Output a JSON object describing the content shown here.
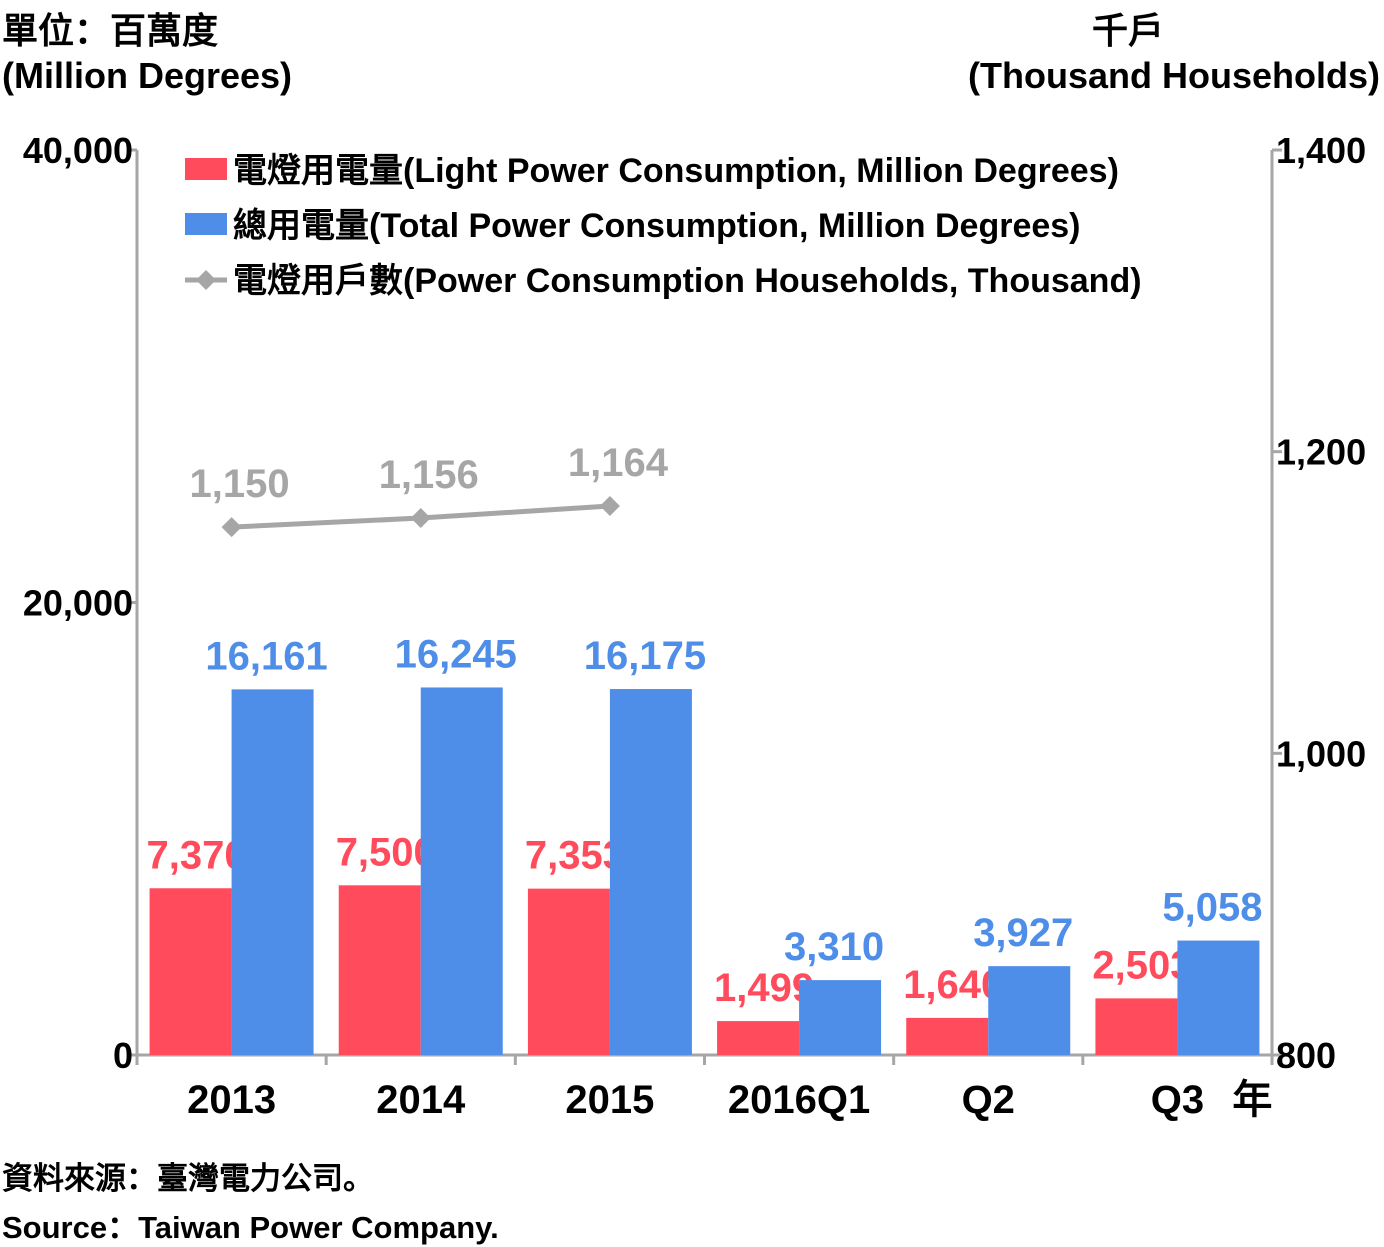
{
  "left_unit": {
    "line1": "單位：百萬度",
    "line2": "(Million Degrees)"
  },
  "right_unit": {
    "line1": "千戶",
    "line2": "(Thousand Households)"
  },
  "source": {
    "zh": "資料來源：臺灣電力公司。",
    "en": "Source：Taiwan Power Company."
  },
  "year_suffix": "年",
  "colors": {
    "light": "#FF4B5C",
    "total": "#4F8EE8",
    "households": "#A6A6A6",
    "axis": "#A6A6A6"
  },
  "chart_data": {
    "type": "bar",
    "categories": [
      "2013",
      "2014",
      "2015",
      "2016Q1",
      "Q2",
      "Q3"
    ],
    "series": [
      {
        "name": "電燈用電量(Light Power Consumption, Million Degrees)",
        "values": [
          7370,
          7500,
          7353,
          1499,
          1640,
          2503
        ],
        "labels": [
          "7,370",
          "7,500",
          "7,353",
          "1,499",
          "1,640",
          "2,503"
        ],
        "axis": "left"
      },
      {
        "name": "總用電量(Total Power Consumption, Million Degrees)",
        "values": [
          16161,
          16245,
          16175,
          3310,
          3927,
          5058
        ],
        "labels": [
          "16,161",
          "16,245",
          "16,175",
          "3,310",
          "3,927",
          "5,058"
        ],
        "axis": "left"
      },
      {
        "name": "電燈用戶數(Power Consumption Households, Thousand)",
        "type": "line",
        "values": [
          1150,
          1156,
          1164,
          null,
          null,
          null
        ],
        "labels": [
          "1,150",
          "1,156",
          "1,164",
          "",
          "",
          ""
        ],
        "axis": "right"
      }
    ],
    "y_left": {
      "range": [
        0,
        40000
      ],
      "ticks": [
        "0",
        "20,000",
        "40,000"
      ],
      "tick_values": [
        0,
        20000,
        40000
      ]
    },
    "y_right": {
      "range": [
        800,
        1400
      ],
      "ticks": [
        "800",
        "1,000",
        "1,200",
        "1,400"
      ],
      "tick_values": [
        800,
        1000,
        1200,
        1400
      ]
    },
    "legend": "top-left"
  }
}
